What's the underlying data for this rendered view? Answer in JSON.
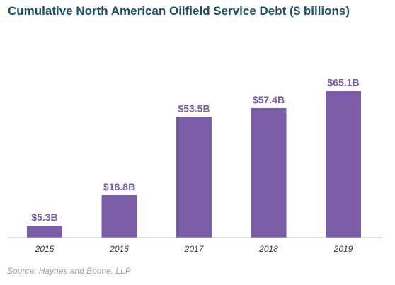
{
  "chart_data": {
    "type": "bar",
    "title": "Cumulative North American Oilfield Service Debt ($ billions)",
    "categories": [
      "2015",
      "2016",
      "2017",
      "2018",
      "2019"
    ],
    "values": [
      5.3,
      18.8,
      53.5,
      57.4,
      65.1
    ],
    "data_labels": [
      "$5.3B",
      "$18.8B",
      "$53.5B",
      "$57.4B",
      "$65.1B"
    ],
    "xlabel": "",
    "ylabel": "",
    "ylim": [
      0,
      70
    ],
    "grid": false,
    "legend": "none",
    "bar_color": "#7b5ea7",
    "label_color": "#7b5ea7",
    "source": "Source: Haynes and Boone, LLP"
  }
}
